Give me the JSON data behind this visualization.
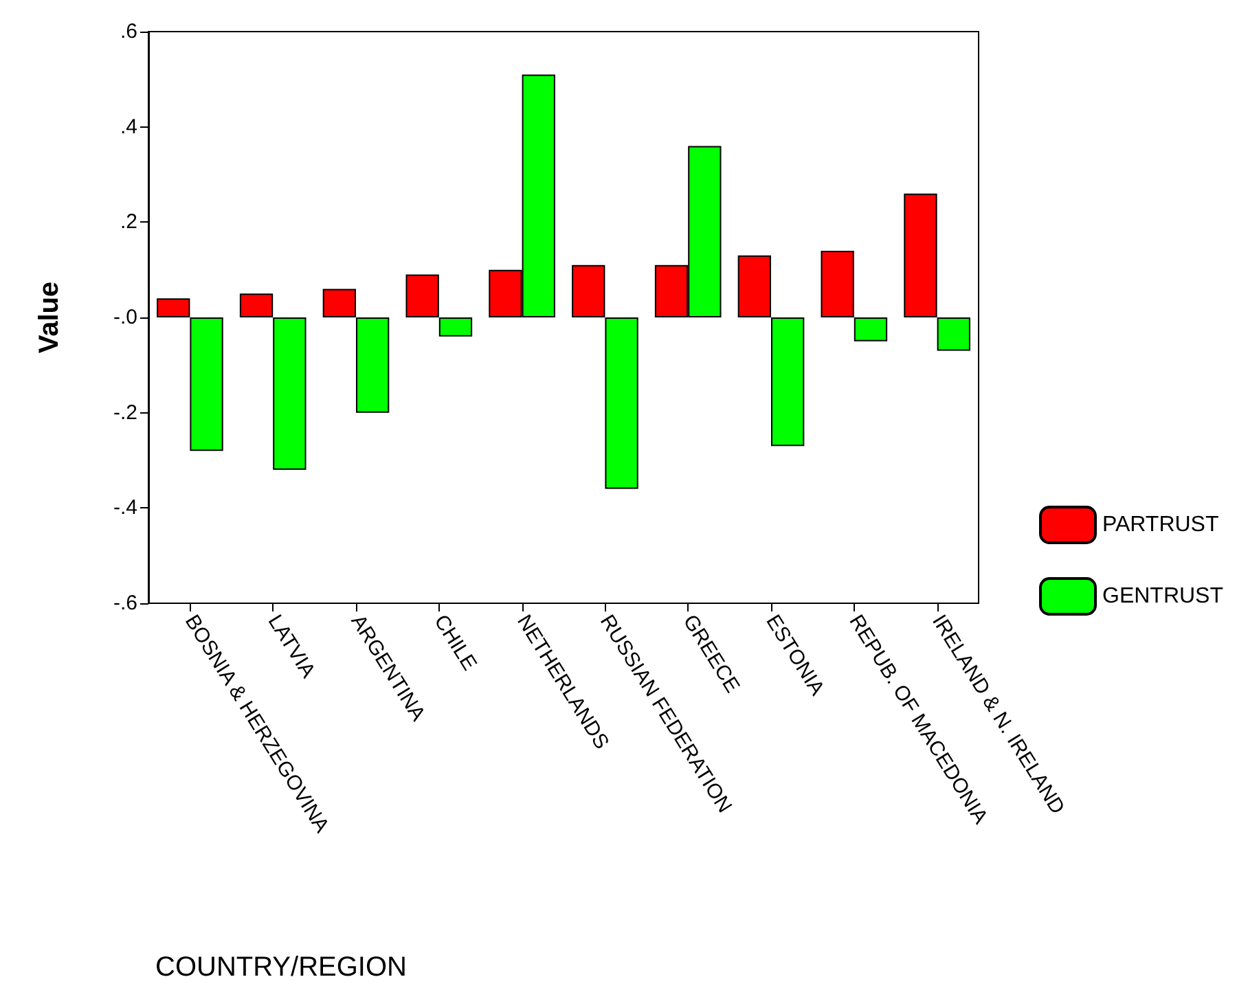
{
  "chart_data": {
    "type": "bar",
    "xlabel": "COUNTRY/REGION",
    "ylabel": "Value",
    "categories": [
      "BOSNIA & HERZEGOVINA",
      "LATVIA",
      "ARGENTINA",
      "CHILE",
      "NETHERLANDS",
      "RUSSIAN FEDERATION",
      "GREECE",
      "ESTONIA",
      "REPUB. OF MACEDONIA",
      "IRELAND & N. IRELAND"
    ],
    "series": [
      {
        "name": "PARTRUST",
        "color": "#ff0000",
        "values": [
          0.04,
          0.05,
          0.06,
          0.09,
          0.1,
          0.11,
          0.11,
          0.13,
          0.14,
          0.26
        ]
      },
      {
        "name": "GENTRUST",
        "color": "#00ff00",
        "values": [
          -0.28,
          -0.32,
          -0.2,
          -0.04,
          0.51,
          -0.36,
          0.36,
          -0.27,
          -0.05,
          -0.07
        ]
      }
    ],
    "ylim": [
      -0.6,
      0.6
    ],
    "yticks": [
      {
        "value": -0.6,
        "label": "-.6"
      },
      {
        "value": -0.4,
        "label": "-.4"
      },
      {
        "value": -0.2,
        "label": "-.2"
      },
      {
        "value": 0,
        "label": "-.0"
      },
      {
        "value": 0.2,
        "label": ".2"
      },
      {
        "value": 0.4,
        "label": ".4"
      },
      {
        "value": 0.6,
        "label": ".6"
      }
    ],
    "grid": false,
    "legend": "right"
  }
}
